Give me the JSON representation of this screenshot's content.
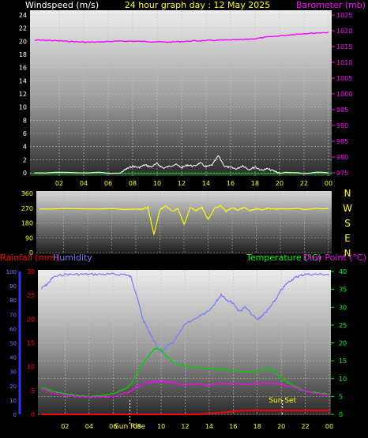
{
  "header": {
    "left": "Windspeed (m/s)",
    "center": "24 hour graph day : 12 May 2025",
    "right": "Barometer (mb)"
  },
  "bottom_header": {
    "rainfall": "Rainfall (mm)",
    "humidity": "Humidity",
    "temperature": "Temperature (°C)",
    "dewpoint": "Dew Point (°C)"
  },
  "compass": [
    "N",
    "W",
    "S",
    "E",
    "N"
  ],
  "sun": {
    "rise": "Sun Rise",
    "set": "Sun Set"
  },
  "colors": {
    "windspeed": "#ffffff",
    "barometer": "#ff00ff",
    "direction": "#ffff00",
    "humidity": "#7878ff",
    "temperature": "#00d000",
    "dewpoint": "#ff00ff",
    "rainfall": "#ff0000",
    "header_yellow": "#ffff00",
    "header_green": "#00ff00",
    "label_blue": "#3030ff"
  },
  "chart_data": [
    {
      "type": "line",
      "panel": "wind-baro",
      "x_ticks": [
        "02",
        "04",
        "06",
        "08",
        "10",
        "12",
        "14",
        "16",
        "18",
        "20",
        "22",
        "00"
      ],
      "y_left": {
        "label": "Windspeed (m/s)",
        "ylim": [
          0,
          24
        ],
        "ticks": [
          0,
          2,
          4,
          6,
          8,
          10,
          12,
          14,
          16,
          18,
          20,
          22,
          24
        ]
      },
      "y_right": {
        "label": "Barometer (mb)",
        "ylim": [
          975,
          1025
        ],
        "ticks": [
          975,
          980,
          985,
          990,
          995,
          1000,
          1005,
          1010,
          1015,
          1020,
          1025
        ]
      },
      "series": [
        {
          "name": "Barometer",
          "axis": "right",
          "x": [
            0,
            1,
            2,
            3,
            4,
            5,
            6,
            7,
            8,
            9,
            10,
            11,
            12,
            13,
            14,
            15,
            16,
            17,
            18,
            19,
            20,
            21,
            22,
            23,
            24
          ],
          "y": [
            1017.0,
            1017.0,
            1016.8,
            1016.6,
            1016.4,
            1016.4,
            1016.6,
            1016.7,
            1016.7,
            1016.6,
            1016.5,
            1016.4,
            1016.6,
            1016.8,
            1016.9,
            1017.0,
            1017.1,
            1017.2,
            1017.5,
            1018.0,
            1018.4,
            1018.8,
            1019.1,
            1019.3,
            1019.5
          ]
        },
        {
          "name": "Windspeed",
          "axis": "left",
          "x": [
            0,
            7,
            7.5,
            8,
            8.5,
            9,
            9.5,
            10,
            10.5,
            11,
            11.5,
            12,
            12.5,
            13,
            13.5,
            14,
            14.5,
            15,
            15.5,
            16,
            16.5,
            17,
            17.5,
            18,
            18.5,
            19,
            19.5,
            20,
            24
          ],
          "y": [
            0,
            0,
            0.6,
            1.0,
            0.8,
            1.2,
            0.9,
            1.4,
            0.7,
            1.0,
            1.3,
            0.8,
            1.2,
            1.0,
            1.5,
            0.9,
            1.2,
            2.6,
            1.0,
            0.8,
            0.6,
            1.1,
            0.5,
            0.9,
            0.4,
            0.6,
            0.3,
            0,
            0
          ]
        }
      ]
    },
    {
      "type": "line",
      "panel": "wind-direction",
      "x_ticks": [
        "02",
        "04",
        "06",
        "08",
        "10",
        "12",
        "14",
        "16",
        "18",
        "20",
        "22",
        "00"
      ],
      "y_left": {
        "ylim": [
          0,
          360
        ],
        "ticks": [
          0,
          90,
          180,
          270,
          360
        ]
      },
      "series": [
        {
          "name": "Wind Direction",
          "x": [
            0,
            8,
            8.5,
            9,
            9.5,
            10,
            10.5,
            11,
            11.5,
            12,
            12.5,
            13,
            13.5,
            14,
            14.5,
            15,
            15.5,
            16,
            16.5,
            17,
            17.5,
            18,
            18.5,
            19,
            19.5,
            20,
            24
          ],
          "y": [
            265,
            265,
            262,
            275,
            110,
            260,
            285,
            250,
            268,
            170,
            272,
            255,
            275,
            200,
            265,
            285,
            250,
            270,
            260,
            272,
            255,
            268,
            262,
            270,
            265,
            265,
            265
          ]
        }
      ]
    },
    {
      "type": "line",
      "panel": "temp-humidity",
      "x_ticks": [
        "02",
        "04",
        "06",
        "08",
        "10",
        "12",
        "14",
        "16",
        "18",
        "20",
        "22",
        "00"
      ],
      "y_left": {
        "label": "Humidity",
        "ylim": [
          0,
          100
        ],
        "ticks": [
          0,
          10,
          20,
          30,
          40,
          50,
          60,
          70,
          80,
          90,
          100
        ]
      },
      "y_left_inner": {
        "label": "Rainfall (mm)",
        "ylim": [
          0,
          30
        ],
        "ticks": [
          0,
          5,
          10,
          15,
          20,
          25,
          30
        ]
      },
      "y_right": {
        "label": "Temperature (°C)",
        "ylim": [
          0,
          40
        ],
        "ticks": [
          0,
          5,
          10,
          15,
          20,
          25,
          30,
          35,
          40
        ]
      },
      "sun": {
        "rise": 7.4,
        "set": 20.1
      },
      "series": [
        {
          "name": "Humidity",
          "axis": "left",
          "x": [
            0,
            0.5,
            1,
            2,
            3,
            4,
            5,
            6,
            7,
            7.5,
            8,
            8.5,
            9,
            9.5,
            10,
            10.5,
            11,
            12,
            13,
            14,
            14.5,
            15,
            15.5,
            16,
            16.5,
            17,
            18,
            18.5,
            19,
            19.5,
            20,
            20.5,
            21,
            21.5,
            22,
            23,
            24
          ],
          "y": [
            88,
            91,
            96,
            98,
            98,
            98,
            98,
            98,
            98,
            96,
            82,
            66,
            58,
            50,
            43,
            48,
            50,
            63,
            68,
            72,
            78,
            84,
            80,
            78,
            72,
            75,
            66,
            70,
            74,
            80,
            87,
            92,
            95,
            97,
            98,
            98,
            98
          ]
        },
        {
          "name": "Temperature",
          "axis": "right",
          "x": [
            0,
            1,
            2,
            3,
            4,
            5,
            6,
            7,
            7.5,
            8,
            8.5,
            9,
            9.5,
            10,
            10.5,
            11,
            12,
            13,
            14,
            15,
            16,
            17,
            18,
            19,
            19.5,
            20,
            21,
            22,
            23,
            24
          ],
          "y": [
            7.5,
            6.5,
            5.7,
            5.3,
            5.0,
            5.2,
            5.8,
            7.0,
            8.5,
            11.5,
            14.5,
            16.5,
            18.5,
            18.0,
            16.0,
            14.5,
            13.5,
            13.0,
            12.8,
            12.5,
            12.3,
            12.0,
            12.0,
            13.0,
            12.0,
            10.0,
            8.0,
            6.5,
            6.0,
            5.5
          ]
        },
        {
          "name": "Dew Point",
          "axis": "right",
          "x": [
            0,
            1,
            2,
            3,
            4,
            5,
            6,
            7,
            7.5,
            8,
            8.5,
            9,
            9.5,
            10,
            10.5,
            11,
            12,
            13,
            14,
            15,
            16,
            17,
            18,
            19,
            20,
            21,
            22,
            23,
            24
          ],
          "y": [
            7.0,
            6.0,
            5.4,
            5.0,
            4.8,
            4.8,
            5.0,
            5.8,
            6.5,
            7.8,
            8.5,
            9.0,
            9.2,
            9.4,
            9.0,
            8.8,
            8.0,
            8.5,
            8.2,
            8.5,
            8.6,
            8.5,
            8.7,
            8.8,
            8.5,
            7.5,
            6.5,
            5.8,
            5.3
          ]
        },
        {
          "name": "Rainfall",
          "axis": "left_inner",
          "x": [
            0,
            7,
            12,
            13,
            17,
            24
          ],
          "y": [
            0.0,
            0.0,
            0.0,
            0.0,
            0.8,
            0.8
          ]
        }
      ]
    }
  ]
}
